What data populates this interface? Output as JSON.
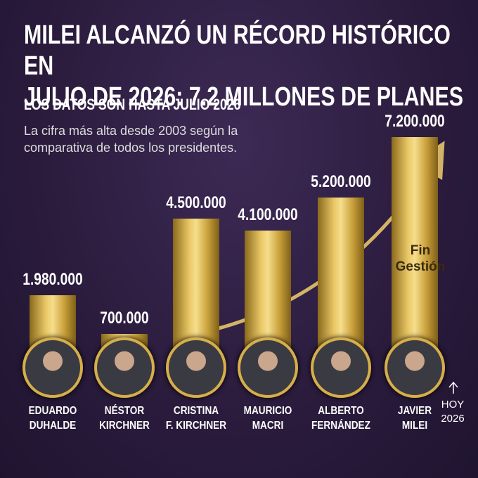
{
  "chart_data": {
    "type": "bar",
    "title": "MILEI ALCANZÓ UN RÉCORD HISTÓRICO EN\nJULIO DE 2026: 7.2 MILLONES DE PLANES",
    "subtitle": "LOS DATOS SON HASTA JULIO 2026",
    "description": "La cifra más alta desde 2003 según la\ncomparativa de todos los presidentes.",
    "categories": [
      "EDUARDO\nDUHALDE",
      "NÉSTOR\nKIRCHNER",
      "CRISTINA\nF. KIRCHNER",
      "MAURICIO\nMACRI",
      "ALBERTO\nFERNÁNDEZ",
      "JAVIER\nMILEI"
    ],
    "values": [
      1980000,
      700000,
      4500000,
      4100000,
      5200000,
      7200000
    ],
    "value_labels": [
      "1.980.000",
      "700.000",
      "4.500.000",
      "4.100.000",
      "5.200.000",
      "7.200.000"
    ],
    "color": "#d9b44a",
    "annotations": [
      "Fin\nGestión",
      "HOY\n2026"
    ]
  }
}
